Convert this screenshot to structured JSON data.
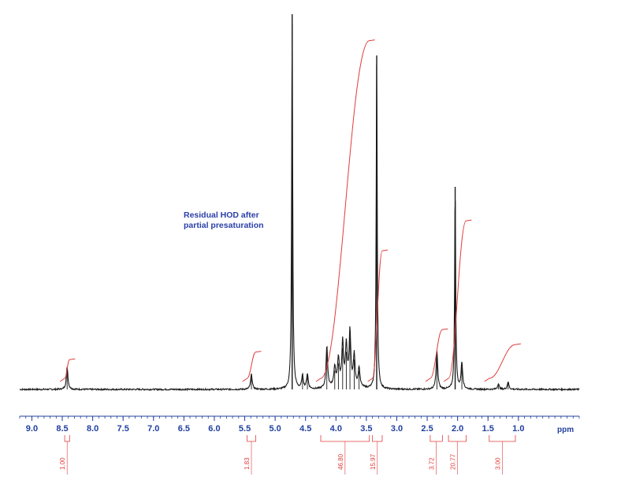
{
  "chart_data": {
    "type": "line",
    "title": "",
    "xlabel": "ppm",
    "ylabel": "",
    "x_reversed": true,
    "xlim": [
      9.2,
      0.0
    ],
    "x_ticks": [
      9.0,
      8.5,
      8.0,
      7.5,
      7.0,
      6.5,
      6.0,
      5.5,
      5.0,
      4.5,
      4.0,
      3.5,
      3.0,
      2.5,
      2.0,
      1.5,
      1.0
    ],
    "x_tick_labels": [
      "9.0",
      "8.5",
      "8.0",
      "7.5",
      "7.0",
      "6.5",
      "6.0",
      "5.5",
      "5.0",
      "4.5",
      "4.0",
      "3.5",
      "3.0",
      "2.5",
      "2.0",
      "1.5",
      "1.0"
    ],
    "grid": false,
    "series": [
      {
        "peaks": [
          {
            "ppm": 8.42,
            "height": 0.06
          },
          {
            "ppm": 5.39,
            "height": 0.04
          },
          {
            "ppm": 4.72,
            "height": 1.0
          },
          {
            "ppm": 4.55,
            "height": 0.035
          },
          {
            "ppm": 4.47,
            "height": 0.04
          },
          {
            "ppm": 4.15,
            "height": 0.11
          },
          {
            "ppm": 4.02,
            "height": 0.05
          },
          {
            "ppm": 3.96,
            "height": 0.07
          },
          {
            "ppm": 3.89,
            "height": 0.11
          },
          {
            "ppm": 3.83,
            "height": 0.1
          },
          {
            "ppm": 3.77,
            "height": 0.14
          },
          {
            "ppm": 3.7,
            "height": 0.08
          },
          {
            "ppm": 3.62,
            "height": 0.05
          },
          {
            "ppm": 3.33,
            "height": 0.89
          },
          {
            "ppm": 2.34,
            "height": 0.1
          },
          {
            "ppm": 2.04,
            "height": 0.54
          },
          {
            "ppm": 1.93,
            "height": 0.07
          },
          {
            "ppm": 1.33,
            "height": 0.015
          },
          {
            "ppm": 1.17,
            "height": 0.02
          }
        ]
      }
    ],
    "integrals": [
      {
        "start_ppm": 8.46,
        "end_ppm": 8.38,
        "value": "1.00",
        "rise": 0.05
      },
      {
        "start_ppm": 5.46,
        "end_ppm": 5.32,
        "value": "1.83",
        "rise": 0.07
      },
      {
        "start_ppm": 4.25,
        "end_ppm": 3.45,
        "value": "46.80",
        "rise": 0.9
      },
      {
        "start_ppm": 3.4,
        "end_ppm": 3.24,
        "value": "15.97",
        "rise": 0.34
      },
      {
        "start_ppm": 2.45,
        "end_ppm": 2.25,
        "value": "3.72",
        "rise": 0.13
      },
      {
        "start_ppm": 2.15,
        "end_ppm": 1.86,
        "value": "20.77",
        "rise": 0.42
      },
      {
        "start_ppm": 1.48,
        "end_ppm": 1.05,
        "value": "3.00",
        "rise": 0.09
      }
    ],
    "annotations": [
      {
        "text_line1": "Residual HOD after",
        "text_line2": "partial presaturation"
      }
    ]
  }
}
